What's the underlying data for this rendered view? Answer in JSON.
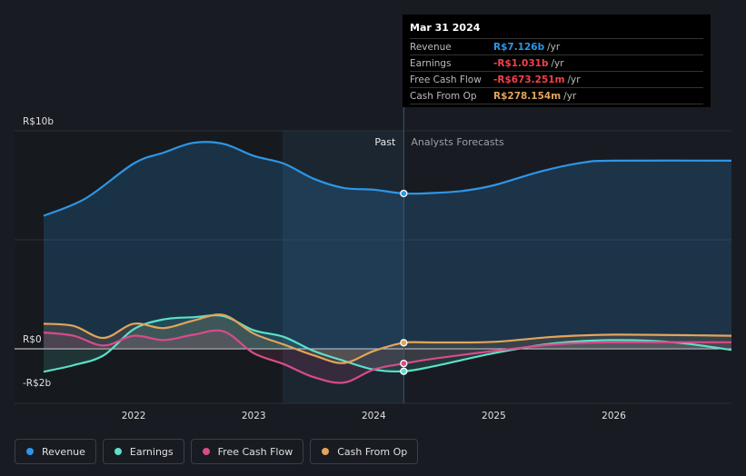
{
  "chart_data": {
    "type": "line",
    "y_unit": "R$",
    "ylim": [
      -2,
      10
    ],
    "y_ticks": [
      {
        "value": 10,
        "label": "R$10b"
      },
      {
        "value": 0,
        "label": "R$0"
      },
      {
        "value": -2,
        "label": "-R$2b"
      }
    ],
    "xlim": [
      2021.25,
      2026.98
    ],
    "x_ticks": [
      {
        "value": 2022,
        "label": "2022"
      },
      {
        "value": 2023,
        "label": "2023"
      },
      {
        "value": 2024,
        "label": "2024"
      },
      {
        "value": 2025,
        "label": "2025"
      },
      {
        "value": 2026,
        "label": "2026"
      }
    ],
    "past_start": 2023.24,
    "divider": 2024.25,
    "past_label": "Past",
    "forecast_label": "Analysts Forecasts",
    "series": [
      {
        "name": "Revenue",
        "color": "#2d96e6",
        "points": [
          [
            2021.25,
            6.1
          ],
          [
            2021.6,
            6.9
          ],
          [
            2022.0,
            8.5
          ],
          [
            2022.25,
            9.0
          ],
          [
            2022.5,
            9.45
          ],
          [
            2022.75,
            9.4
          ],
          [
            2023.0,
            8.85
          ],
          [
            2023.25,
            8.5
          ],
          [
            2023.5,
            7.8
          ],
          [
            2023.75,
            7.38
          ],
          [
            2024.0,
            7.3
          ],
          [
            2024.25,
            7.126
          ],
          [
            2024.5,
            7.15
          ],
          [
            2024.75,
            7.25
          ],
          [
            2025.0,
            7.5
          ],
          [
            2025.4,
            8.15
          ],
          [
            2025.75,
            8.55
          ],
          [
            2026.0,
            8.63
          ],
          [
            2026.98,
            8.63
          ]
        ]
      },
      {
        "name": "Earnings",
        "color": "#5ce0c8",
        "points": [
          [
            2021.25,
            -1.05
          ],
          [
            2021.5,
            -0.75
          ],
          [
            2021.75,
            -0.3
          ],
          [
            2022.0,
            0.9
          ],
          [
            2022.25,
            1.35
          ],
          [
            2022.5,
            1.45
          ],
          [
            2022.75,
            1.5
          ],
          [
            2023.0,
            0.85
          ],
          [
            2023.25,
            0.55
          ],
          [
            2023.5,
            -0.1
          ],
          [
            2023.75,
            -0.55
          ],
          [
            2024.0,
            -0.95
          ],
          [
            2024.25,
            -1.031
          ],
          [
            2024.5,
            -0.8
          ],
          [
            2025.0,
            -0.2
          ],
          [
            2025.5,
            0.25
          ],
          [
            2026.0,
            0.4
          ],
          [
            2026.5,
            0.3
          ],
          [
            2026.98,
            -0.05
          ]
        ]
      },
      {
        "name": "Free Cash Flow",
        "color": "#d84c8a",
        "points": [
          [
            2021.25,
            0.75
          ],
          [
            2021.5,
            0.6
          ],
          [
            2021.75,
            0.15
          ],
          [
            2022.0,
            0.6
          ],
          [
            2022.25,
            0.4
          ],
          [
            2022.5,
            0.65
          ],
          [
            2022.75,
            0.8
          ],
          [
            2023.0,
            -0.2
          ],
          [
            2023.25,
            -0.7
          ],
          [
            2023.5,
            -1.3
          ],
          [
            2023.75,
            -1.55
          ],
          [
            2024.0,
            -0.95
          ],
          [
            2024.25,
            -0.673
          ],
          [
            2024.5,
            -0.45
          ],
          [
            2025.0,
            -0.1
          ],
          [
            2025.5,
            0.2
          ],
          [
            2026.0,
            0.3
          ],
          [
            2026.98,
            0.3
          ]
        ]
      },
      {
        "name": "Cash From Op",
        "color": "#e2a55a",
        "points": [
          [
            2021.25,
            1.15
          ],
          [
            2021.5,
            1.05
          ],
          [
            2021.75,
            0.5
          ],
          [
            2022.0,
            1.15
          ],
          [
            2022.25,
            0.95
          ],
          [
            2022.5,
            1.3
          ],
          [
            2022.75,
            1.55
          ],
          [
            2023.0,
            0.7
          ],
          [
            2023.25,
            0.2
          ],
          [
            2023.5,
            -0.3
          ],
          [
            2023.75,
            -0.65
          ],
          [
            2024.0,
            -0.1
          ],
          [
            2024.25,
            0.278
          ],
          [
            2024.5,
            0.29
          ],
          [
            2025.0,
            0.32
          ],
          [
            2025.5,
            0.55
          ],
          [
            2026.0,
            0.65
          ],
          [
            2026.98,
            0.6
          ]
        ]
      }
    ]
  },
  "tooltip": {
    "date": "Mar 31 2024",
    "rows": [
      {
        "label": "Revenue",
        "value": "R$7.126b",
        "unit": "/yr",
        "color": "#2d96e6"
      },
      {
        "label": "Earnings",
        "value": "-R$1.031b",
        "unit": "/yr",
        "color": "#f0414b"
      },
      {
        "label": "Free Cash Flow",
        "value": "-R$673.251m",
        "unit": "/yr",
        "color": "#f0414b"
      },
      {
        "label": "Cash From Op",
        "value": "R$278.154m",
        "unit": "/yr",
        "color": "#e2a55a"
      }
    ]
  },
  "legend": [
    {
      "label": "Revenue",
      "color": "#2d96e6"
    },
    {
      "label": "Earnings",
      "color": "#5ce0c8"
    },
    {
      "label": "Free Cash Flow",
      "color": "#d84c8a"
    },
    {
      "label": "Cash From Op",
      "color": "#e2a55a"
    }
  ]
}
